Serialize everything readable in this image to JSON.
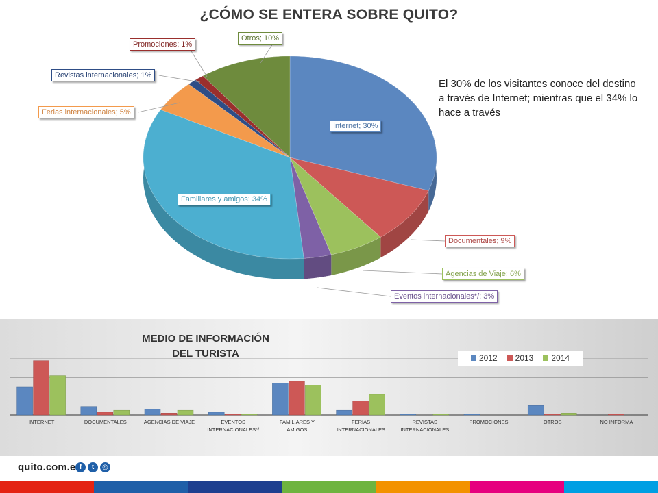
{
  "pie": {
    "title": "¿CÓMO SE ENTERA SOBRE QUITO?",
    "annotation": "El 30% de los visitantes conoce del destino a través de Internet; mientras  que el 34% lo hace a través",
    "chart_data": {
      "type": "pie",
      "slices": [
        {
          "name": "Internet",
          "value": 30,
          "label": "Internet; 30%",
          "color": "#5b87c0"
        },
        {
          "name": "Documentales",
          "value": 9,
          "label": "Documentales; 9%",
          "color": "#cd5856"
        },
        {
          "name": "Agencias de Viaje",
          "value": 6,
          "label": "Agencias de Viaje; 6%",
          "color": "#9cc15d"
        },
        {
          "name": "Eventos internacionales*/",
          "value": 3,
          "label": "Eventos internacionales*/; 3%",
          "color": "#7e61a6"
        },
        {
          "name": "Familiares y amigos",
          "value": 34,
          "label": "Familiares y amigos; 34%",
          "color": "#4cafd0"
        },
        {
          "name": "Ferias internacionales",
          "value": 5,
          "label": "Ferias internacionales; 5%",
          "color": "#f39a4c"
        },
        {
          "name": "Revistas internacionales",
          "value": 1,
          "label": "Revistas internacionales; 1%",
          "color": "#2e4d86"
        },
        {
          "name": "Promociones",
          "value": 1,
          "label": "Promociones; 1%",
          "color": "#9a2f2d"
        },
        {
          "name": "Otros",
          "value": 10,
          "label": "Otros; 10%",
          "color": "#6e8b3d"
        }
      ]
    }
  },
  "bars": {
    "title_line1": "MEDIO DE INFORMACIÓN",
    "title_line2": "DEL TURISTA",
    "chart_data": {
      "type": "bar",
      "categories": [
        "INTERNET",
        "DOCUMENTALES",
        "AGENCIAS  DE VIAJE",
        "EVENTOS INTERNACIONALES*/",
        "FAMILIARES  Y AMIGOS",
        "FERIAS INTERNACIONALES",
        "REVISTAS INTERNACIONALES",
        "PROMOCIONES",
        "OTROS",
        "NO INFORMA"
      ],
      "series": [
        {
          "name": "2012",
          "color": "#5b87c0",
          "values": [
            30,
            9,
            6,
            3,
            34,
            5,
            1,
            1,
            10,
            0
          ]
        },
        {
          "name": "2013",
          "color": "#cd5856",
          "values": [
            58,
            3,
            2,
            1,
            36,
            15,
            0,
            0,
            1,
            1
          ]
        },
        {
          "name": "2014",
          "color": "#9cc15d",
          "values": [
            42,
            5,
            5,
            1,
            32,
            22,
            1,
            0,
            2,
            0
          ]
        }
      ],
      "ylim": [
        0,
        60
      ],
      "grid": true,
      "legend": "top-right"
    }
  },
  "footer": {
    "logo": "quito.com.ec",
    "stripe_colors": [
      "#e42313",
      "#1f5fa8",
      "#1e3f8f",
      "#6eb43f",
      "#f39200",
      "#e6007e",
      "#009fe3"
    ]
  }
}
